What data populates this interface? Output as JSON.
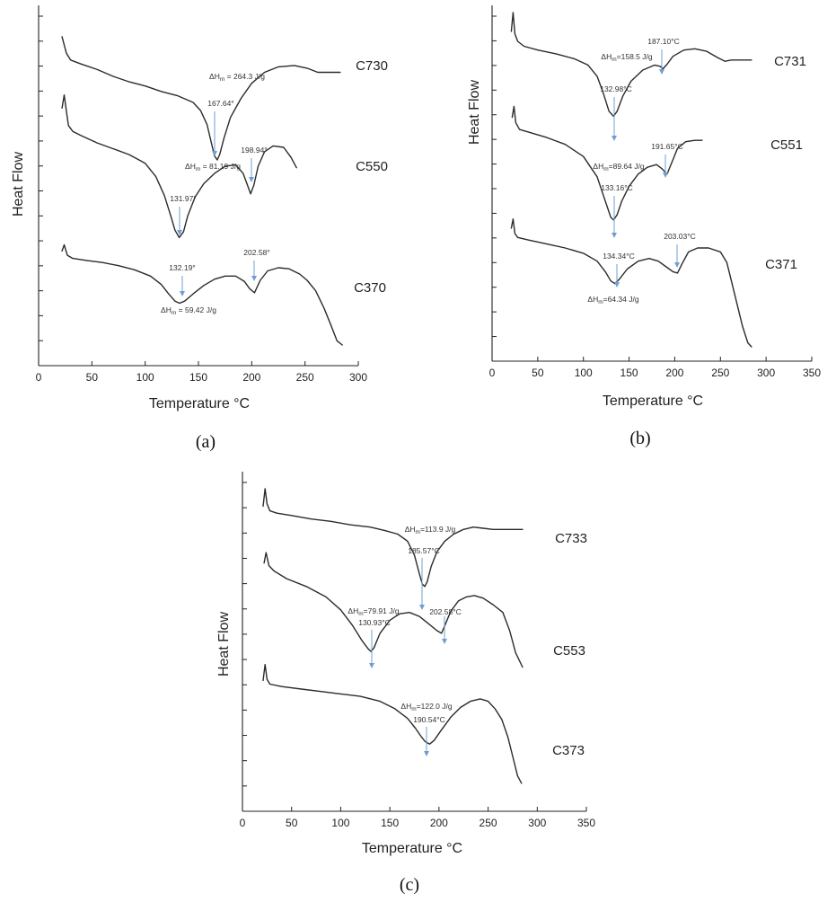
{
  "chart_data": [
    {
      "panel": "(a)",
      "type": "line",
      "title": "",
      "xlabel": "Temperature °C",
      "ylabel": "Heat Flow",
      "xlim": [
        0,
        300
      ],
      "xticks": [
        "0",
        "50",
        "100",
        "150",
        "200",
        "250",
        "300"
      ],
      "series": [
        {
          "name": "C730",
          "label": "C730",
          "x": [
            22,
            26,
            30,
            40,
            55,
            70,
            85,
            100,
            115,
            130,
            145,
            152,
            158,
            162,
            165,
            167.64,
            170,
            174,
            180,
            190,
            200,
            212,
            225,
            240,
            252,
            262,
            272,
            283
          ],
          "y": [
            10.0,
            8.8,
            8.3,
            8.0,
            7.6,
            7.1,
            6.7,
            6.4,
            6.0,
            5.7,
            5.2,
            4.6,
            3.6,
            2.3,
            1.3,
            1.0,
            1.4,
            2.6,
            4.1,
            5.5,
            6.6,
            7.4,
            7.8,
            7.9,
            7.7,
            7.4,
            7.4,
            7.4
          ]
        },
        {
          "name": "C550",
          "label": "C550",
          "x": [
            22,
            24,
            26,
            28,
            32,
            40,
            55,
            70,
            85,
            100,
            110,
            118,
            124,
            128,
            131.97,
            136,
            140,
            147,
            155,
            165,
            175,
            185,
            192,
            196,
            198.94,
            202,
            206,
            212,
            220,
            230,
            237,
            242
          ],
          "y": [
            10.0,
            10.9,
            9.8,
            8.8,
            8.4,
            8.1,
            7.6,
            7.2,
            6.8,
            6.2,
            5.3,
            4.0,
            2.6,
            1.6,
            1.1,
            1.5,
            2.6,
            3.9,
            4.8,
            5.5,
            6.0,
            6.1,
            5.5,
            4.7,
            4.1,
            4.7,
            6.0,
            7.0,
            7.4,
            7.3,
            6.6,
            5.9
          ]
        },
        {
          "name": "C370",
          "label": "C370",
          "x": [
            22,
            24,
            27,
            32,
            45,
            60,
            75,
            90,
            105,
            115,
            122,
            128,
            132.19,
            137,
            145,
            155,
            165,
            175,
            185,
            193,
            198,
            202.58,
            208,
            215,
            225,
            235,
            245,
            252,
            260,
            268,
            274,
            280,
            285
          ],
          "y": [
            10.0,
            10.6,
            9.6,
            9.3,
            9.1,
            8.9,
            8.6,
            8.2,
            7.6,
            6.8,
            5.9,
            5.2,
            5.0,
            5.2,
            5.9,
            6.7,
            7.3,
            7.6,
            7.6,
            7.1,
            6.4,
            6.0,
            7.2,
            8.1,
            8.4,
            8.3,
            7.8,
            7.2,
            6.2,
            4.5,
            3.0,
            1.4,
            1.0
          ]
        }
      ],
      "annotations": [
        {
          "text": "ΔHm = 264.3 J/g",
          "series": "C730"
        },
        {
          "text": "167.64°",
          "series": "C730",
          "x": 167.64
        },
        {
          "text": "ΔHm = 81.19 J/g",
          "series": "C550"
        },
        {
          "text": "131.97°",
          "series": "C550",
          "x": 131.97
        },
        {
          "text": "198.94°",
          "series": "C550",
          "x": 198.94
        },
        {
          "text": "132.19°",
          "series": "C370",
          "x": 132.19
        },
        {
          "text": "202.58°",
          "series": "C370",
          "x": 202.58
        },
        {
          "text": "ΔHm = 59.42 J/g",
          "series": "C370"
        }
      ],
      "caption": "(a)"
    },
    {
      "panel": "(b)",
      "type": "line",
      "title": "",
      "xlabel": "Temperature °C",
      "ylabel": "Heat Flow",
      "xlim": [
        0,
        350
      ],
      "xticks": [
        "0",
        "50",
        "100",
        "150",
        "200",
        "250",
        "300",
        "350"
      ],
      "series": [
        {
          "name": "C731",
          "label": "C731",
          "x": [
            21,
            23,
            25,
            28,
            35,
            50,
            70,
            90,
            105,
            115,
            122,
            128,
            132.98,
            137,
            143,
            152,
            165,
            178,
            184,
            187.1,
            192,
            198,
            210,
            222,
            235,
            247,
            255,
            262,
            272,
            284
          ],
          "y": [
            10.0,
            11.5,
            9.8,
            9.2,
            8.8,
            8.5,
            8.2,
            7.8,
            7.3,
            6.4,
            5.0,
            3.6,
            3.2,
            3.6,
            4.8,
            6.0,
            6.9,
            7.3,
            7.2,
            7.0,
            7.4,
            8.0,
            8.5,
            8.6,
            8.4,
            7.9,
            7.6,
            7.7,
            7.7,
            7.7
          ]
        },
        {
          "name": "C551",
          "label": "C551",
          "x": [
            22,
            24,
            26,
            30,
            40,
            60,
            80,
            100,
            115,
            124,
            130,
            133.16,
            137,
            142,
            150,
            160,
            170,
            180,
            186,
            191.65,
            197,
            203,
            212,
            222,
            230
          ],
          "y": [
            10.0,
            10.8,
            9.6,
            9.1,
            8.9,
            8.5,
            8.0,
            7.1,
            5.6,
            3.8,
            2.6,
            2.4,
            2.8,
            3.8,
            4.9,
            5.8,
            6.3,
            6.5,
            6.2,
            5.8,
            6.7,
            7.7,
            8.2,
            8.3,
            8.3
          ]
        },
        {
          "name": "C371",
          "label": "C371",
          "x": [
            21,
            23,
            25,
            28,
            40,
            60,
            80,
            100,
            115,
            124,
            130,
            134.34,
            139,
            148,
            160,
            172,
            182,
            192,
            198,
            203.03,
            208,
            215,
            225,
            237,
            250,
            257,
            262,
            268,
            274,
            280,
            284
          ],
          "y": [
            10.0,
            10.7,
            9.6,
            9.3,
            9.1,
            8.8,
            8.5,
            8.1,
            7.5,
            6.7,
            6.0,
            5.8,
            6.1,
            6.9,
            7.5,
            7.7,
            7.5,
            7.0,
            6.7,
            6.6,
            7.3,
            8.2,
            8.5,
            8.5,
            8.2,
            7.4,
            6.0,
            4.3,
            2.6,
            1.3,
            1.0
          ]
        }
      ],
      "annotations": [
        {
          "text": "ΔHm=158.5 J/g",
          "series": "C731"
        },
        {
          "text": "187.10°C",
          "series": "C731",
          "x": 187.1
        },
        {
          "text": "132.98°C",
          "series": "C731",
          "x": 132.98
        },
        {
          "text": "191.65°C",
          "series": "C551",
          "x": 191.65
        },
        {
          "text": "ΔHm=89.64 J/g",
          "series": "C551"
        },
        {
          "text": "133.16°C",
          "series": "C551",
          "x": 133.16
        },
        {
          "text": "203.03°C",
          "series": "C371",
          "x": 203.03
        },
        {
          "text": "134.34°C",
          "series": "C371",
          "x": 134.34
        },
        {
          "text": "ΔHm=64.34 J/g",
          "series": "C371"
        }
      ],
      "caption": "(b)"
    },
    {
      "panel": "(c)",
      "type": "line",
      "title": "",
      "xlabel": "Temperature °C",
      "ylabel": "Heat Flow",
      "xlim": [
        0,
        350
      ],
      "xticks": [
        "0",
        "50",
        "100",
        "150",
        "200",
        "250",
        "300",
        "350"
      ],
      "series": [
        {
          "name": "C733",
          "label": "C733",
          "x": [
            21,
            23,
            25,
            28,
            35,
            50,
            70,
            90,
            110,
            130,
            145,
            158,
            168,
            175,
            180,
            183,
            185.57,
            188,
            192,
            198,
            206,
            215,
            225,
            235,
            245,
            255,
            265,
            275,
            285
          ],
          "y": [
            10.0,
            11.5,
            10.2,
            9.6,
            9.4,
            9.2,
            8.9,
            8.7,
            8.4,
            8.2,
            7.9,
            7.6,
            7.0,
            5.8,
            4.2,
            3.3,
            3.1,
            3.5,
            4.8,
            6.1,
            7.0,
            7.6,
            8.0,
            8.2,
            8.1,
            8.0,
            8.0,
            8.0,
            8.0
          ]
        },
        {
          "name": "C553",
          "label": "C553",
          "x": [
            22,
            24,
            27,
            32,
            45,
            65,
            85,
            100,
            112,
            122,
            128,
            130.93,
            134,
            140,
            150,
            160,
            170,
            180,
            190,
            198,
            202.58,
            206,
            212,
            220,
            228,
            236,
            245,
            255,
            265,
            272,
            278,
            285
          ],
          "y": [
            10.0,
            10.8,
            9.8,
            9.4,
            8.8,
            8.2,
            7.4,
            6.4,
            5.2,
            4.0,
            3.4,
            3.2,
            3.5,
            4.6,
            5.6,
            6.1,
            6.2,
            5.9,
            5.3,
            4.8,
            4.6,
            5.2,
            6.3,
            7.1,
            7.4,
            7.5,
            7.3,
            6.8,
            6.2,
            4.8,
            3.1,
            2.0
          ]
        },
        {
          "name": "C373",
          "label": "C373",
          "x": [
            21,
            23,
            25,
            28,
            40,
            60,
            80,
            100,
            120,
            140,
            155,
            168,
            176,
            182,
            186,
            190.54,
            195,
            202,
            212,
            222,
            232,
            242,
            250,
            257,
            264,
            270,
            276,
            280,
            284
          ],
          "y": [
            10.0,
            11.3,
            10.1,
            9.7,
            9.5,
            9.3,
            9.1,
            8.9,
            8.7,
            8.3,
            7.7,
            6.9,
            6.1,
            5.4,
            5.0,
            4.8,
            5.1,
            5.9,
            7.0,
            7.8,
            8.3,
            8.5,
            8.3,
            7.7,
            6.8,
            5.4,
            3.5,
            2.2,
            1.6
          ]
        }
      ],
      "annotations": [
        {
          "text": "ΔHm=113.9 J/g",
          "series": "C733"
        },
        {
          "text": "185.57°C",
          "series": "C733",
          "x": 185.57
        },
        {
          "text": "ΔHm=79.91 J/g",
          "series": "C553"
        },
        {
          "text": "130.93°C",
          "series": "C553",
          "x": 130.93
        },
        {
          "text": "202.58°C",
          "series": "C553",
          "x": 202.58
        },
        {
          "text": "ΔHm=122.0 J/g",
          "series": "C373"
        },
        {
          "text": "190.54°C",
          "series": "C373",
          "x": 190.54
        }
      ],
      "caption": "(c)"
    }
  ]
}
